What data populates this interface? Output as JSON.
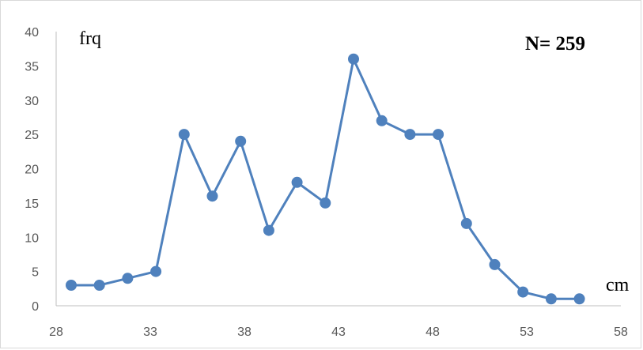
{
  "chart_data": {
    "type": "line",
    "ylabel": "frq",
    "xlabel": "cm",
    "annotation": "N= 259",
    "xlim": [
      28,
      58
    ],
    "ylim": [
      0,
      40
    ],
    "x_ticks": [
      "28",
      "33",
      "38",
      "43",
      "48",
      "53",
      "58"
    ],
    "y_ticks": [
      "0",
      "5",
      "10",
      "15",
      "20",
      "25",
      "30",
      "35",
      "40"
    ],
    "grid": false,
    "series": [
      {
        "color": "#4f81bd",
        "x": [
          28.8,
          30.3,
          31.8,
          33.3,
          34.8,
          36.3,
          37.8,
          39.3,
          40.8,
          42.3,
          43.8,
          45.3,
          46.8,
          48.3,
          49.8,
          51.3,
          52.8,
          54.3,
          55.8
        ],
        "y": [
          3,
          3,
          4,
          5,
          25,
          16,
          24,
          11,
          18,
          15,
          36,
          27,
          25,
          25,
          12,
          6,
          2,
          1,
          1
        ]
      }
    ]
  }
}
